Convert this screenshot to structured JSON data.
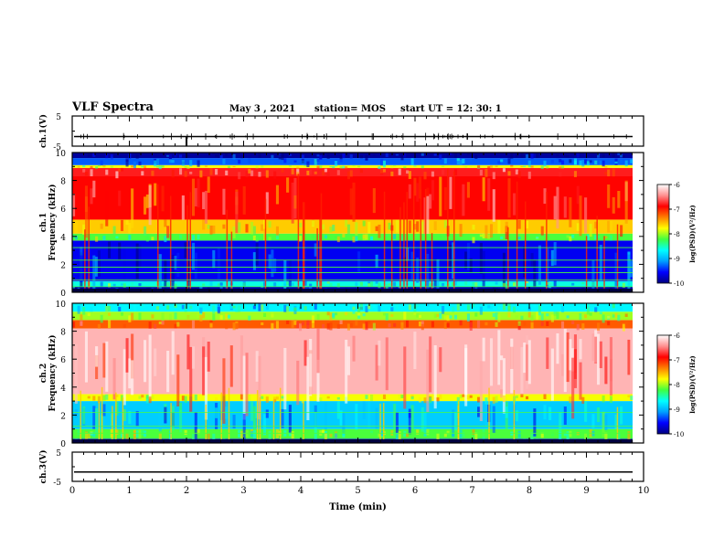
{
  "header": {
    "title": "VLF Spectra",
    "date": "May 3 , 2021",
    "station": "station= MOS",
    "start": "start UT = 12: 30: 1"
  },
  "chart_data": [
    {
      "type": "line",
      "name": "ch1-voltage",
      "ylabel": "ch.1(V)",
      "ylim": [
        -5,
        5
      ],
      "yticks": [
        "5",
        "-5"
      ],
      "xlim": [
        0,
        10
      ],
      "trace_level_v": -1.8,
      "trace_color": "#000000"
    },
    {
      "type": "heatmap",
      "name": "ch1-spectrogram",
      "ylabel": "ch.1\nFrequency (kHz)",
      "ylim": [
        0,
        10
      ],
      "yticks": [
        "0",
        "2",
        "4",
        "6",
        "8",
        "10"
      ],
      "xlim": [
        0,
        9.8
      ],
      "bands_khz": [
        {
          "from": 0,
          "to": 0.4,
          "level": -9.8
        },
        {
          "from": 0.4,
          "to": 0.8,
          "level": -8.6
        },
        {
          "from": 0.8,
          "to": 3.7,
          "level": -9.6
        },
        {
          "from": 3.7,
          "to": 4.2,
          "level": -8.2
        },
        {
          "from": 4.2,
          "to": 5.2,
          "level": -7.6
        },
        {
          "from": 5.2,
          "to": 8.3,
          "level": -6.9
        },
        {
          "from": 8.3,
          "to": 8.9,
          "level": -6.8
        },
        {
          "from": 8.9,
          "to": 9.1,
          "level": -7.8
        },
        {
          "from": 9.1,
          "to": 9.6,
          "level": -9.3
        },
        {
          "from": 9.6,
          "to": 10,
          "level": -9.9
        }
      ],
      "colorbar": {
        "label": "log(PSD)(V²/Hz)",
        "ticks": [
          "-6",
          "-7",
          "-8",
          "-9",
          "-10"
        ],
        "range": [
          -10,
          -6
        ]
      }
    },
    {
      "type": "heatmap",
      "name": "ch2-spectrogram",
      "ylabel": "ch.2\nFrequency (kHz)",
      "ylim": [
        0,
        10
      ],
      "yticks": [
        "0",
        "2",
        "4",
        "6",
        "8",
        "10"
      ],
      "xlim": [
        0,
        9.8
      ],
      "bands_khz": [
        {
          "from": 0,
          "to": 0.3,
          "level": -9.7
        },
        {
          "from": 0.3,
          "to": 1.0,
          "level": -8.2
        },
        {
          "from": 1.0,
          "to": 3.0,
          "level": -8.9
        },
        {
          "from": 3.0,
          "to": 3.5,
          "level": -7.8
        },
        {
          "from": 3.5,
          "to": 8.2,
          "level": -6.3
        },
        {
          "from": 8.2,
          "to": 8.8,
          "level": -7.2
        },
        {
          "from": 8.8,
          "to": 9.4,
          "level": -8.0
        },
        {
          "from": 9.4,
          "to": 10,
          "level": -8.7
        }
      ],
      "colorbar": {
        "label": "log(PSD)(V²/Hz)",
        "ticks": [
          "-6",
          "-7",
          "-8",
          "-9",
          "-10"
        ],
        "range": [
          -10,
          -6
        ]
      }
    },
    {
      "type": "line",
      "name": "ch3-voltage",
      "ylabel": "ch.3(V)",
      "ylim": [
        -5,
        5
      ],
      "yticks": [
        "5",
        "-5"
      ],
      "xlim": [
        0,
        10
      ],
      "trace_level_v": -1.8,
      "trace_color": "#000000"
    }
  ],
  "xaxis": {
    "label": "Time (min)",
    "ticks": [
      "0",
      "1",
      "2",
      "3",
      "4",
      "5",
      "6",
      "7",
      "8",
      "9",
      "10"
    ],
    "range": [
      0,
      10
    ]
  },
  "colormap": [
    "#000080",
    "#0000ff",
    "#00a0ff",
    "#00ffff",
    "#40ff40",
    "#ffff00",
    "#ff8000",
    "#ff0000",
    "#ff9090",
    "#ffffff"
  ]
}
